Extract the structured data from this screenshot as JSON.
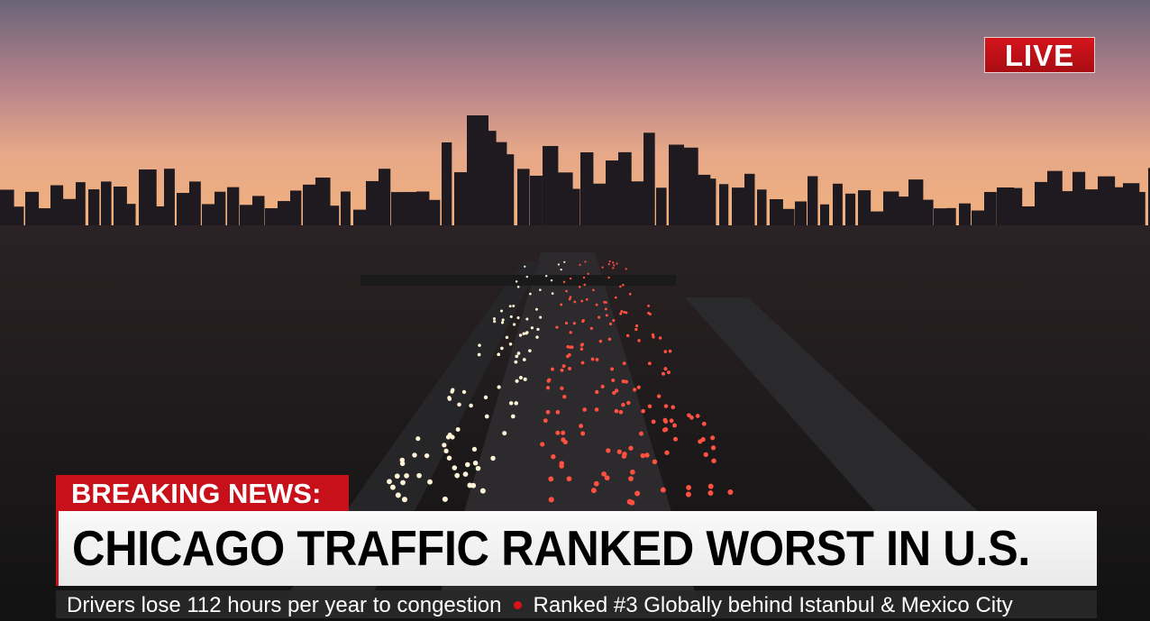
{
  "live_badge": {
    "label": "LIVE",
    "color": "#c8101a"
  },
  "lower_third": {
    "tag": "BREAKING NEWS:",
    "headline": "CHICAGO TRAFFIC RANKED WORST IN U.S.",
    "ticker": [
      "Drivers lose 112 hours per year to congestion",
      "Ranked #3 Globally behind Istanbul & Mexico City"
    ],
    "accent_color": "#c8101a"
  }
}
